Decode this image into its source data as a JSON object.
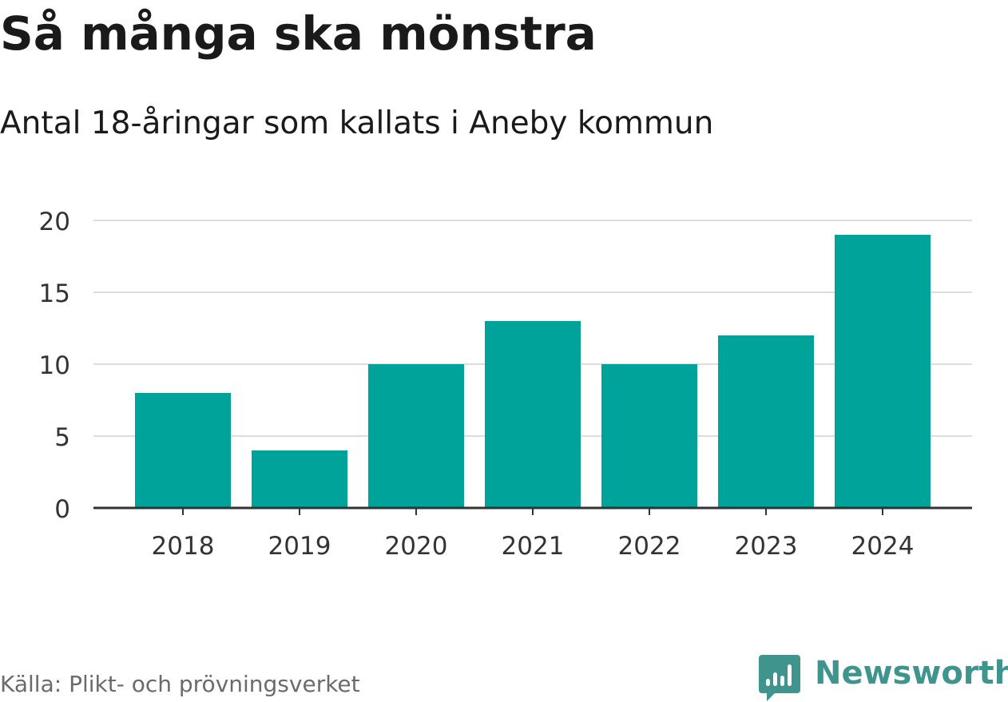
{
  "header": {
    "title": "Så många ska mönstra",
    "subtitle": "Antal 18-åringar som kallats i Aneby kommun"
  },
  "footer": {
    "source": "Källa: Plikt- och prövningsverket",
    "brand": "Newsworthy"
  },
  "colors": {
    "bar": "#00a39a",
    "grid": "#dddddd",
    "axis": "#333333",
    "brand": "#3f948d"
  },
  "chart_data": {
    "type": "bar",
    "title": "Så många ska mönstra",
    "subtitle": "Antal 18-åringar som kallats i Aneby kommun",
    "categories": [
      "2018",
      "2019",
      "2020",
      "2021",
      "2022",
      "2023",
      "2024"
    ],
    "values": [
      8,
      4,
      10,
      13,
      10,
      12,
      19
    ],
    "ylim": [
      0,
      20
    ],
    "yticks": [
      "0",
      "5",
      "10",
      "15",
      "20"
    ],
    "ytick_values": [
      0,
      5,
      10,
      15,
      20
    ],
    "grid": true,
    "legend": "none"
  }
}
